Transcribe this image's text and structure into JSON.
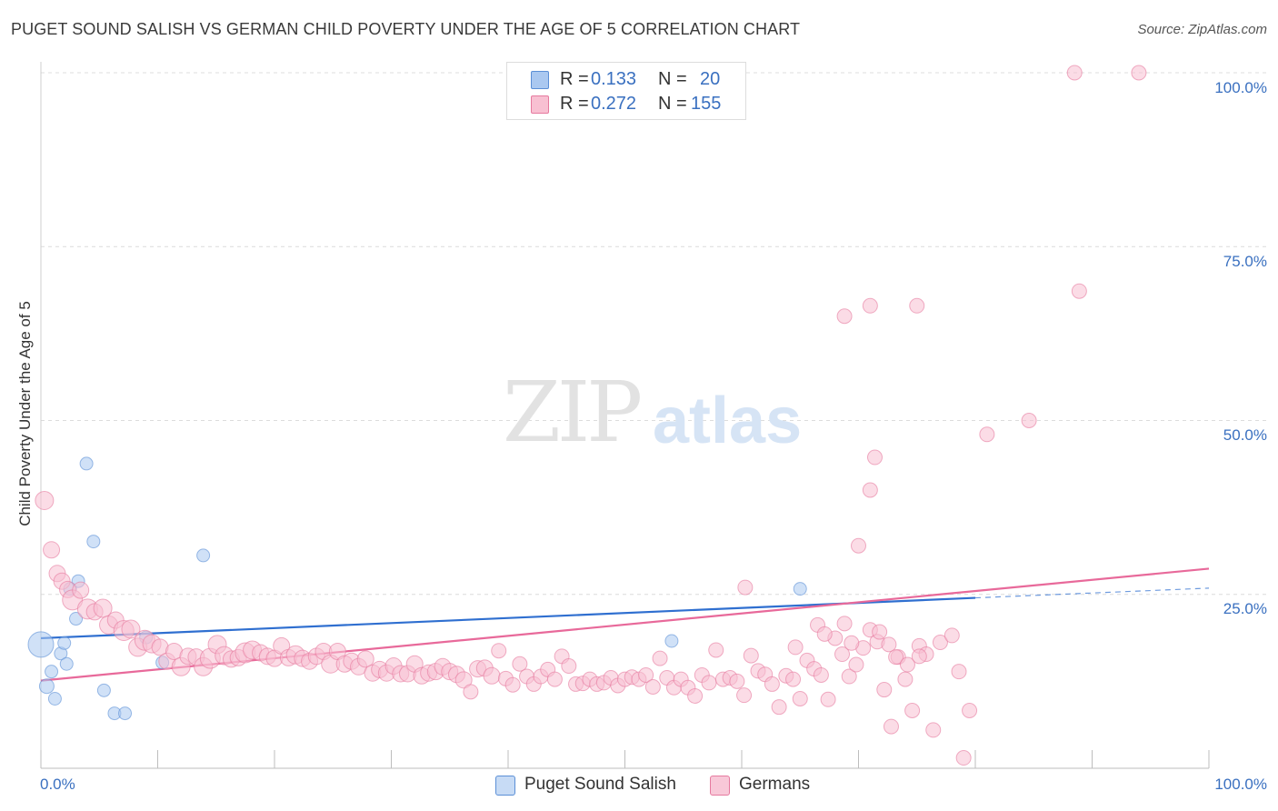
{
  "title": "PUGET SOUND SALISH VS GERMAN CHILD POVERTY UNDER THE AGE OF 5 CORRELATION CHART",
  "source": "Source: ZipAtlas.com",
  "watermark": {
    "zip": "ZIP",
    "atlas": "atlas"
  },
  "legend": {
    "rows": [
      {
        "r_label": "R =",
        "r_value": "0.133",
        "n_label": "N =",
        "n_value": "20",
        "color": "#aac8f0",
        "border": "#5b8fd6"
      },
      {
        "r_label": "R =",
        "r_value": "0.272",
        "n_label": "N =",
        "n_value": "155",
        "color": "#f8c0d2",
        "border": "#e67a9f"
      }
    ]
  },
  "bottom_legend": [
    {
      "label": "Puget Sound Salish",
      "color": "#c7dbf5",
      "border": "#5b8fd6"
    },
    {
      "label": "Germans",
      "color": "#f8c8d8",
      "border": "#e67a9f"
    }
  ],
  "chart_data": {
    "type": "scatter",
    "title": "PUGET SOUND SALISH VS GERMAN CHILD POVERTY UNDER THE AGE OF 5 CORRELATION CHART",
    "xlabel": "",
    "ylabel": "Child Poverty Under the Age of 5",
    "xlim": [
      0,
      100
    ],
    "ylim": [
      0,
      100
    ],
    "x_tick_labels": [
      "0.0%",
      "100.0%"
    ],
    "y_tick_labels": [
      "25.0%",
      "50.0%",
      "75.0%",
      "100.0%"
    ],
    "y_ticks": [
      25,
      50,
      75,
      100
    ],
    "grid": true,
    "legend_position": "top-center",
    "series": [
      {
        "name": "Puget Sound Salish",
        "color": "#5b8fd6",
        "fill": "#aac8f0",
        "points": [
          [
            0.0,
            17.8,
            14
          ],
          [
            0.5,
            11.8,
            8
          ],
          [
            0.9,
            13.9,
            7
          ],
          [
            1.2,
            10.0,
            7
          ],
          [
            1.7,
            16.5,
            7
          ],
          [
            2.0,
            18.0,
            7
          ],
          [
            2.2,
            15.0,
            7
          ],
          [
            2.5,
            25.8,
            7
          ],
          [
            3.0,
            21.5,
            7
          ],
          [
            3.2,
            26.9,
            7
          ],
          [
            3.9,
            43.8,
            7
          ],
          [
            4.5,
            32.6,
            7
          ],
          [
            5.4,
            11.2,
            7
          ],
          [
            6.3,
            7.9,
            7
          ],
          [
            7.2,
            7.9,
            7
          ],
          [
            9.0,
            18.8,
            7
          ],
          [
            10.4,
            15.2,
            7
          ],
          [
            13.9,
            30.6,
            7
          ],
          [
            54.0,
            18.3,
            7
          ],
          [
            65.0,
            25.8,
            7
          ]
        ],
        "trend": {
          "x": [
            0,
            80
          ],
          "y": [
            18.7,
            24.5
          ]
        },
        "trend_ext": {
          "x": [
            80,
            100
          ],
          "y": [
            24.5,
            25.9
          ]
        }
      },
      {
        "name": "Germans",
        "color": "#e67a9f",
        "fill": "#f8c0d2",
        "points": [
          [
            0.3,
            38.5,
            10
          ],
          [
            0.9,
            31.4,
            9
          ],
          [
            1.4,
            28.0,
            9
          ],
          [
            1.8,
            26.9,
            9
          ],
          [
            2.3,
            25.7,
            9
          ],
          [
            2.7,
            24.2,
            11
          ],
          [
            3.4,
            25.6,
            9
          ],
          [
            4.0,
            22.9,
            11
          ],
          [
            4.6,
            22.5,
            9
          ],
          [
            5.3,
            23.0,
            10
          ],
          [
            5.8,
            20.6,
            10
          ],
          [
            6.4,
            21.3,
            9
          ],
          [
            7.1,
            19.8,
            11
          ],
          [
            7.7,
            20.0,
            10
          ],
          [
            8.3,
            17.4,
            10
          ],
          [
            8.9,
            18.4,
            11
          ],
          [
            9.5,
            17.9,
            10
          ],
          [
            10.2,
            17.4,
            9
          ],
          [
            10.8,
            15.4,
            9
          ],
          [
            11.4,
            16.8,
            9
          ],
          [
            12.0,
            14.6,
            10
          ],
          [
            12.6,
            16.1,
            9
          ],
          [
            13.3,
            16.0,
            9
          ],
          [
            13.9,
            14.6,
            10
          ],
          [
            14.5,
            15.8,
            11
          ],
          [
            15.1,
            17.8,
            10
          ],
          [
            15.7,
            16.2,
            10
          ],
          [
            16.3,
            15.7,
            9
          ],
          [
            16.9,
            15.9,
            9
          ],
          [
            17.5,
            16.6,
            11
          ],
          [
            18.1,
            17.0,
            10
          ],
          [
            18.8,
            16.6,
            9
          ],
          [
            19.4,
            16.1,
            9
          ],
          [
            20.0,
            15.8,
            9
          ],
          [
            20.6,
            17.6,
            9
          ],
          [
            21.2,
            15.9,
            9
          ],
          [
            21.8,
            16.3,
            10
          ],
          [
            22.4,
            15.8,
            9
          ],
          [
            23.0,
            15.4,
            9
          ],
          [
            23.6,
            16.1,
            9
          ],
          [
            24.2,
            16.8,
            9
          ],
          [
            24.8,
            15.0,
            10
          ],
          [
            25.4,
            16.8,
            9
          ],
          [
            26.0,
            15.0,
            9
          ],
          [
            26.6,
            15.4,
            9
          ],
          [
            27.2,
            14.6,
            9
          ],
          [
            27.8,
            15.7,
            9
          ],
          [
            28.4,
            13.7,
            9
          ],
          [
            29.0,
            14.2,
            9
          ],
          [
            29.6,
            13.7,
            9
          ],
          [
            30.2,
            14.7,
            9
          ],
          [
            30.8,
            13.6,
            9
          ],
          [
            31.4,
            13.6,
            9
          ],
          [
            32.0,
            15.0,
            9
          ],
          [
            32.6,
            13.3,
            9
          ],
          [
            33.2,
            13.7,
            9
          ],
          [
            33.8,
            13.9,
            9
          ],
          [
            34.4,
            14.6,
            9
          ],
          [
            35.0,
            13.9,
            9
          ],
          [
            35.6,
            13.5,
            9
          ],
          [
            36.2,
            12.7,
            9
          ],
          [
            36.8,
            11.0,
            8
          ],
          [
            37.4,
            14.3,
            9
          ],
          [
            38.0,
            14.4,
            9
          ],
          [
            38.6,
            13.3,
            9
          ],
          [
            39.2,
            16.9,
            8
          ],
          [
            39.8,
            12.9,
            8
          ],
          [
            40.4,
            12.0,
            8
          ],
          [
            41.0,
            15.0,
            8
          ],
          [
            41.6,
            13.2,
            8
          ],
          [
            42.2,
            12.1,
            8
          ],
          [
            42.8,
            13.2,
            8
          ],
          [
            43.4,
            14.2,
            8
          ],
          [
            44.0,
            12.8,
            8
          ],
          [
            44.6,
            16.1,
            8
          ],
          [
            45.2,
            14.7,
            8
          ],
          [
            45.8,
            12.1,
            8
          ],
          [
            46.4,
            12.2,
            8
          ],
          [
            47.0,
            12.8,
            8
          ],
          [
            47.6,
            12.1,
            8
          ],
          [
            48.2,
            12.3,
            8
          ],
          [
            48.8,
            13.0,
            8
          ],
          [
            49.4,
            11.9,
            8
          ],
          [
            50.0,
            12.8,
            8
          ],
          [
            50.6,
            13.1,
            8
          ],
          [
            51.2,
            12.8,
            8
          ],
          [
            51.8,
            13.4,
            8
          ],
          [
            52.4,
            11.7,
            8
          ],
          [
            53.0,
            15.8,
            8
          ],
          [
            53.6,
            13.0,
            8
          ],
          [
            54.2,
            11.6,
            8
          ],
          [
            54.8,
            12.8,
            8
          ],
          [
            55.4,
            11.6,
            8
          ],
          [
            56.0,
            10.4,
            8
          ],
          [
            56.6,
            13.4,
            8
          ],
          [
            57.2,
            12.3,
            8
          ],
          [
            57.8,
            17.0,
            8
          ],
          [
            58.4,
            12.8,
            8
          ],
          [
            59.0,
            13.0,
            8
          ],
          [
            59.6,
            12.5,
            8
          ],
          [
            60.2,
            10.5,
            8
          ],
          [
            60.8,
            16.2,
            8
          ],
          [
            61.4,
            14.0,
            8
          ],
          [
            62.0,
            13.5,
            8
          ],
          [
            62.6,
            12.1,
            8
          ],
          [
            63.2,
            8.8,
            8
          ],
          [
            63.8,
            13.3,
            8
          ],
          [
            64.4,
            12.8,
            8
          ],
          [
            65.0,
            10.0,
            8
          ],
          [
            65.6,
            15.5,
            8
          ],
          [
            66.2,
            14.3,
            8
          ],
          [
            66.8,
            13.4,
            8
          ],
          [
            67.4,
            9.9,
            8
          ],
          [
            68.0,
            18.7,
            8
          ],
          [
            68.6,
            16.4,
            8
          ],
          [
            69.2,
            13.2,
            8
          ],
          [
            69.8,
            14.9,
            8
          ],
          [
            70.4,
            17.3,
            8
          ],
          [
            71.0,
            19.9,
            8
          ],
          [
            71.6,
            18.2,
            8
          ],
          [
            72.2,
            11.3,
            8
          ],
          [
            72.8,
            6.0,
            8
          ],
          [
            73.4,
            16.0,
            8
          ],
          [
            74.0,
            12.8,
            8
          ],
          [
            74.6,
            8.3,
            8
          ],
          [
            75.2,
            17.6,
            8
          ],
          [
            75.8,
            16.4,
            8
          ],
          [
            76.4,
            5.5,
            8
          ],
          [
            77.0,
            18.1,
            8
          ],
          [
            78.0,
            19.1,
            8
          ],
          [
            78.6,
            13.9,
            8
          ],
          [
            79.0,
            1.5,
            8
          ],
          [
            79.5,
            8.3,
            8
          ],
          [
            70.0,
            32.0,
            8
          ],
          [
            71.8,
            19.6,
            8
          ],
          [
            72.6,
            17.8,
            8
          ],
          [
            73.2,
            16.0,
            8
          ],
          [
            74.2,
            14.9,
            8
          ],
          [
            75.2,
            16.1,
            8
          ],
          [
            68.8,
            20.8,
            8
          ],
          [
            68.8,
            65.0,
            8
          ],
          [
            71.0,
            66.5,
            8
          ],
          [
            75.0,
            66.5,
            8
          ],
          [
            71.0,
            40.0,
            8
          ],
          [
            71.4,
            44.7,
            8
          ],
          [
            81.0,
            48.0,
            8
          ],
          [
            84.6,
            50.0,
            8
          ],
          [
            88.9,
            68.6,
            8
          ],
          [
            88.5,
            100.0,
            8
          ],
          [
            94.0,
            100.0,
            8
          ],
          [
            60.3,
            26.0,
            8
          ],
          [
            66.5,
            20.6,
            8
          ],
          [
            67.1,
            19.3,
            8
          ],
          [
            69.4,
            18.0,
            8
          ],
          [
            64.6,
            17.4,
            8
          ]
        ],
        "trend": {
          "x": [
            0,
            100
          ],
          "y": [
            12.6,
            28.7
          ]
        }
      }
    ]
  }
}
